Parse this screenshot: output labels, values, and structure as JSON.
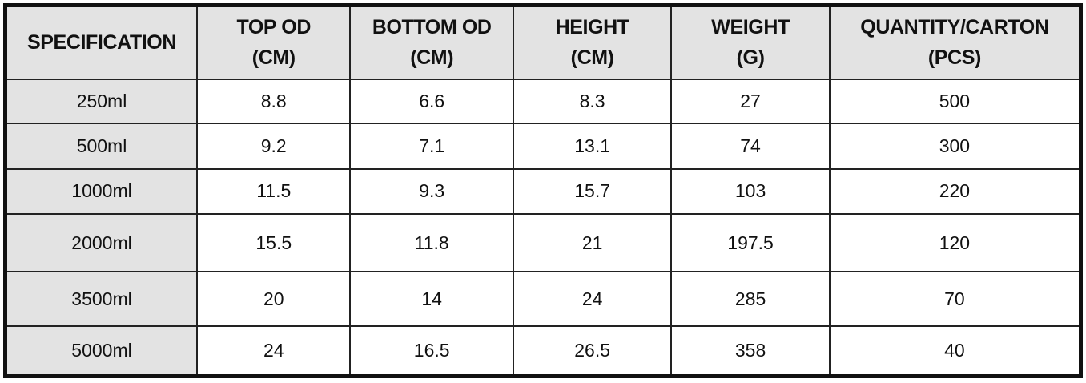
{
  "table": {
    "header": [
      "SPECIFICATION",
      "TOP OD\n(CM)",
      "BOTTOM OD\n(CM)",
      "HEIGHT\n(CM)",
      "WEIGHT\n(G)",
      "QUANTITY/CARTON\n(PCS)"
    ],
    "rows": [
      [
        "250ml",
        8.8,
        6.6,
        8.3,
        27,
        500
      ],
      [
        "500ml",
        9.2,
        7.1,
        13.1,
        74,
        300
      ],
      [
        "1000ml",
        11.5,
        9.3,
        15.7,
        103,
        220
      ],
      [
        "2000ml",
        15.5,
        11.8,
        21,
        197.5,
        120
      ],
      [
        "3500ml",
        20,
        14,
        24,
        285,
        70
      ],
      [
        "5000ml",
        24,
        16.5,
        26.5,
        358,
        40
      ]
    ]
  }
}
